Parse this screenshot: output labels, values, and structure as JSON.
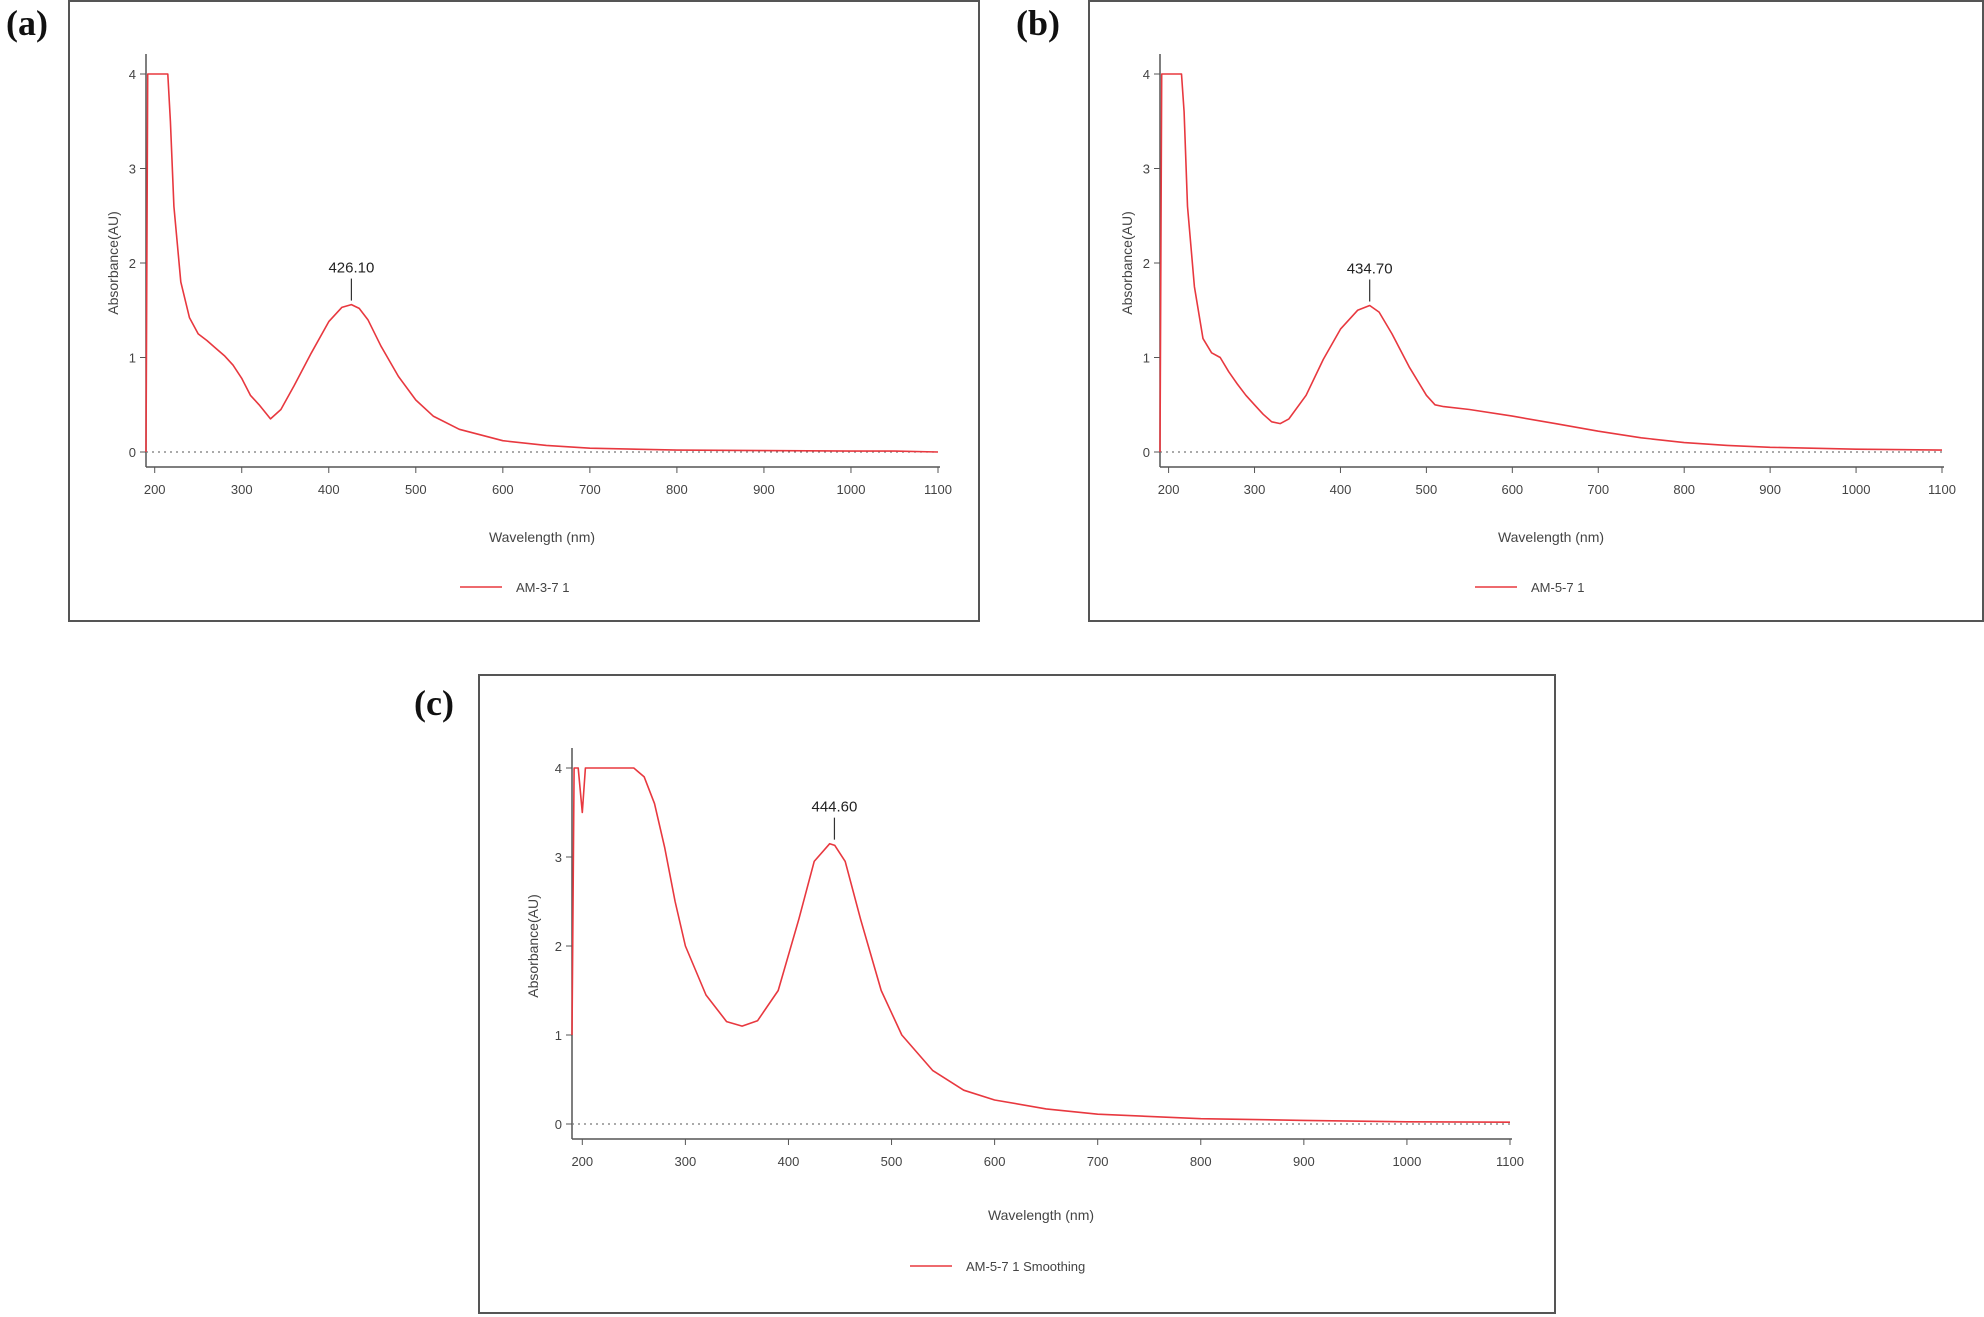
{
  "panels": [
    {
      "letter": "(a)"
    },
    {
      "letter": "(b)"
    },
    {
      "letter": "(c)"
    }
  ],
  "colors": {
    "series": "#e8383f",
    "axis": "#555555",
    "baseline": "#777777"
  },
  "chart_data": [
    {
      "type": "line",
      "xlabel": "Wavelength (nm)",
      "ylabel": "Absorbance(AU)",
      "xlim": [
        190,
        1100
      ],
      "ylim": [
        0,
        4
      ],
      "xticks": [
        200,
        300,
        400,
        500,
        600,
        700,
        800,
        900,
        1000,
        1100
      ],
      "yticks": [
        0,
        1,
        2,
        3,
        4
      ],
      "series": [
        {
          "name": "AM-3-7 1",
          "x": [
            190,
            192,
            195,
            215,
            218,
            222,
            230,
            240,
            250,
            260,
            270,
            280,
            290,
            300,
            310,
            320,
            333,
            345,
            360,
            380,
            400,
            415,
            426,
            435,
            445,
            460,
            480,
            500,
            520,
            550,
            600,
            650,
            700,
            800,
            900,
            1000,
            1050,
            1100
          ],
          "y": [
            0.0,
            4.0,
            4.0,
            4.0,
            3.5,
            2.6,
            1.8,
            1.42,
            1.25,
            1.18,
            1.1,
            1.02,
            0.92,
            0.78,
            0.6,
            0.5,
            0.35,
            0.45,
            0.7,
            1.05,
            1.38,
            1.53,
            1.56,
            1.52,
            1.4,
            1.12,
            0.8,
            0.55,
            0.38,
            0.24,
            0.12,
            0.07,
            0.04,
            0.02,
            0.015,
            0.01,
            0.01,
            0.0
          ]
        }
      ],
      "annotations": [
        {
          "x": 426,
          "y": 1.56,
          "label": "426.10"
        }
      ]
    },
    {
      "type": "line",
      "xlabel": "Wavelength (nm)",
      "ylabel": "Absorbance(AU)",
      "xlim": [
        190,
        1100
      ],
      "ylim": [
        0,
        4
      ],
      "xticks": [
        200,
        300,
        400,
        500,
        600,
        700,
        800,
        900,
        1000,
        1100
      ],
      "yticks": [
        0,
        1,
        2,
        3,
        4
      ],
      "series": [
        {
          "name": "AM-5-7 1",
          "x": [
            190,
            192,
            195,
            215,
            218,
            222,
            230,
            240,
            250,
            260,
            270,
            280,
            290,
            300,
            310,
            320,
            330,
            340,
            360,
            380,
            400,
            420,
            434,
            445,
            460,
            480,
            500,
            510,
            520,
            550,
            600,
            650,
            700,
            750,
            800,
            850,
            900,
            1000,
            1100
          ],
          "y": [
            0.0,
            4.0,
            4.0,
            4.0,
            3.6,
            2.6,
            1.75,
            1.2,
            1.05,
            1.0,
            0.85,
            0.72,
            0.6,
            0.5,
            0.4,
            0.32,
            0.3,
            0.35,
            0.6,
            0.98,
            1.3,
            1.5,
            1.55,
            1.48,
            1.25,
            0.9,
            0.6,
            0.5,
            0.48,
            0.45,
            0.38,
            0.3,
            0.22,
            0.15,
            0.1,
            0.07,
            0.05,
            0.03,
            0.02
          ]
        }
      ],
      "annotations": [
        {
          "x": 434,
          "y": 1.55,
          "label": "434.70"
        }
      ]
    },
    {
      "type": "line",
      "xlabel": "Wavelength (nm)",
      "ylabel": "Absorbance(AU)",
      "xlim": [
        190,
        1100
      ],
      "ylim": [
        0,
        4
      ],
      "xticks": [
        200,
        300,
        400,
        500,
        600,
        700,
        800,
        900,
        1000,
        1100
      ],
      "yticks": [
        0,
        1,
        2,
        3,
        4
      ],
      "series": [
        {
          "name": "AM-5-7 1 Smoothing",
          "x": [
            190,
            192,
            196,
            200,
            203,
            207,
            215,
            230,
            250,
            260,
            270,
            280,
            290,
            300,
            320,
            340,
            355,
            370,
            390,
            410,
            425,
            440,
            445,
            455,
            470,
            490,
            510,
            540,
            570,
            600,
            650,
            700,
            800,
            900,
            1000,
            1100
          ],
          "y": [
            1.0,
            4.0,
            4.0,
            3.5,
            4.0,
            4.0,
            4.0,
            4.0,
            4.0,
            3.9,
            3.6,
            3.1,
            2.5,
            2.0,
            1.45,
            1.15,
            1.1,
            1.16,
            1.5,
            2.3,
            2.95,
            3.15,
            3.13,
            2.95,
            2.3,
            1.5,
            1.0,
            0.6,
            0.38,
            0.27,
            0.17,
            0.11,
            0.06,
            0.04,
            0.025,
            0.02
          ]
        }
      ],
      "annotations": [
        {
          "x": 444.6,
          "y": 3.15,
          "label": "444.60"
        }
      ]
    }
  ]
}
